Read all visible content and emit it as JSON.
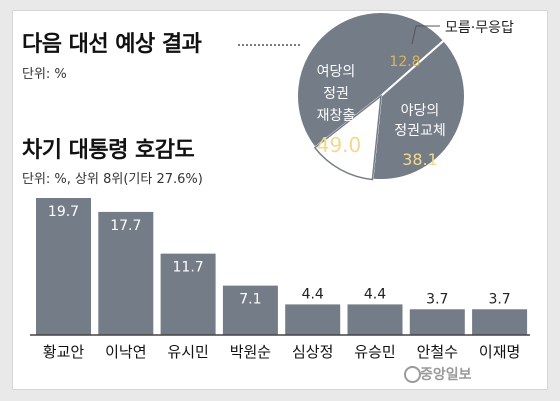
{
  "section1": {
    "title": "다음 대선 예상 결과",
    "unit": "단위: %"
  },
  "section2": {
    "title": "차기 대통령 호감도",
    "unit": "단위: %, 상위 8위(기타 27.6%)"
  },
  "brand": "중앙일보",
  "chart_data": [
    {
      "type": "pie",
      "labels": [
        [
          "여당의",
          "정권",
          "재창출"
        ],
        [
          "야당의",
          "정권교체"
        ],
        [
          "모름·무응답"
        ]
      ],
      "values": [
        49.0,
        38.1,
        12.8
      ],
      "value_labels": [
        "49.0",
        "38.1",
        "12.8"
      ],
      "colors": [
        "#747c87",
        "#747c87",
        "#ffffff"
      ]
    },
    {
      "type": "bar",
      "categories": [
        "황교안",
        "이낙연",
        "유시민",
        "박원순",
        "심상정",
        "유승민",
        "안철수",
        "이재명"
      ],
      "values": [
        19.7,
        17.7,
        11.7,
        7.1,
        4.4,
        4.4,
        3.7,
        3.7
      ],
      "value_labels": [
        "19.7",
        "17.7",
        "11.7",
        "7.1",
        "4.4",
        "4.4",
        "3.7",
        "3.7"
      ],
      "color": "#747c87"
    }
  ]
}
